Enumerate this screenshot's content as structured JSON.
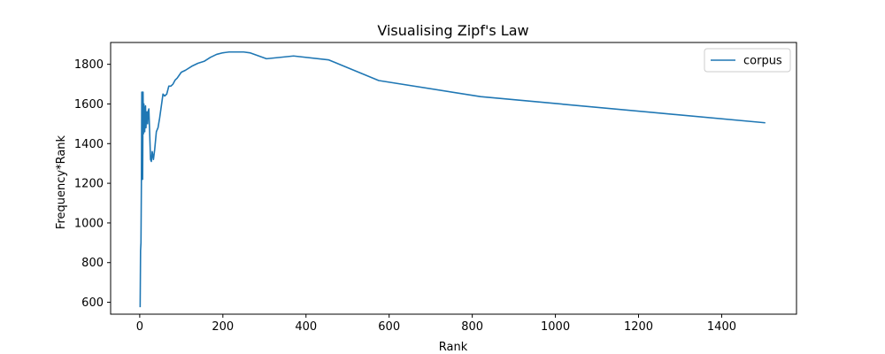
{
  "chart_data": {
    "type": "line",
    "title": "Visualising Zipf's Law",
    "xlabel": "Rank",
    "ylabel": "Frequency*Rank",
    "xlim": [
      -70,
      1580
    ],
    "ylim": [
      540,
      1910
    ],
    "xticks": [
      0,
      200,
      400,
      600,
      800,
      1000,
      1200,
      1400
    ],
    "yticks": [
      600,
      800,
      1000,
      1200,
      1400,
      1600,
      1800
    ],
    "grid": false,
    "legend": {
      "placement": "top-right",
      "entries": [
        "corpus"
      ]
    },
    "series": [
      {
        "name": "corpus",
        "color": "#1f77b4",
        "x": [
          1,
          2,
          3,
          4,
          5,
          6,
          7,
          8,
          9,
          10,
          11,
          12,
          13,
          14,
          15,
          16,
          17,
          18,
          19,
          20,
          22,
          24,
          26,
          28,
          30,
          33,
          36,
          40,
          44,
          48,
          52,
          56,
          60,
          65,
          70,
          75,
          80,
          85,
          90,
          100,
          110,
          125,
          140,
          155,
          170,
          185,
          200,
          215,
          230,
          250,
          265,
          305,
          370,
          455,
          575,
          820,
          1505
        ],
        "y": [
          575,
          860,
          900,
          1200,
          1660,
          1600,
          1220,
          1660,
          1450,
          1600,
          1560,
          1460,
          1540,
          1590,
          1480,
          1520,
          1560,
          1550,
          1500,
          1560,
          1575,
          1450,
          1320,
          1310,
          1360,
          1320,
          1370,
          1460,
          1480,
          1530,
          1590,
          1650,
          1640,
          1650,
          1690,
          1690,
          1700,
          1720,
          1730,
          1760,
          1770,
          1790,
          1805,
          1815,
          1835,
          1850,
          1858,
          1862,
          1862,
          1862,
          1858,
          1828,
          1842,
          1822,
          1718,
          1637,
          1505
        ]
      }
    ]
  }
}
